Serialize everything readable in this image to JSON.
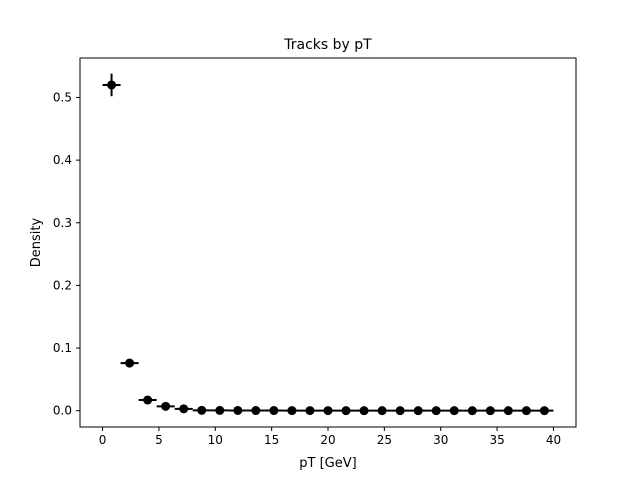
{
  "chart_data": {
    "type": "scatter",
    "title": "Tracks by pT",
    "xlabel": "pT [GeV]",
    "ylabel": "Density",
    "xlim": [
      -2,
      42
    ],
    "ylim": [
      -0.026,
      0.563
    ],
    "xticks": [
      0,
      5,
      10,
      15,
      20,
      25,
      30,
      35,
      40
    ],
    "xtick_labels": [
      "0",
      "5",
      "10",
      "15",
      "20",
      "25",
      "30",
      "35",
      "40"
    ],
    "yticks": [
      0.0,
      0.1,
      0.2,
      0.3,
      0.4,
      0.5
    ],
    "ytick_labels": [
      "0.0",
      "0.1",
      "0.2",
      "0.3",
      "0.4",
      "0.5"
    ],
    "grid": false,
    "legend": false,
    "marker_color": "#000000",
    "series": [
      {
        "x": [
          0.8,
          2.4,
          4.0,
          5.6,
          7.2,
          8.8,
          10.4,
          12.0,
          13.6,
          15.2,
          16.8,
          18.4,
          20.0,
          21.6,
          23.2,
          24.8,
          26.4,
          28.0,
          29.6,
          31.2,
          32.8,
          34.4,
          36.0,
          37.6,
          39.2
        ],
        "y": [
          0.52,
          0.076,
          0.017,
          0.007,
          0.003,
          0.0006,
          0.0005,
          0.0004,
          0.0003,
          0.0003,
          0.0002,
          0.0002,
          0.0002,
          0.0001,
          0.0001,
          0.0001,
          0.0001,
          0.0001,
          0.0001,
          0.0001,
          0.0001,
          0.0001,
          0.0001,
          0.0001,
          0.0001
        ],
        "xerr": [
          0.8,
          0.8,
          0.8,
          0.8,
          0.8,
          0.8,
          0.8,
          0.8,
          0.8,
          0.8,
          0.8,
          0.8,
          0.8,
          0.8,
          0.8,
          0.8,
          0.8,
          0.8,
          0.8,
          0.8,
          0.8,
          0.8,
          0.8,
          0.8,
          0.8
        ],
        "yerr": [
          0.018,
          0.007,
          0.003,
          0.002,
          0.001,
          0.0005,
          0.0004,
          0.0003,
          0.0003,
          0.0003,
          0.0002,
          0.0002,
          0.0002,
          0.0001,
          0.0001,
          0.0001,
          0.0001,
          0.0001,
          0.0001,
          0.0001,
          0.0001,
          0.0001,
          0.0001,
          0.0001,
          0.0001
        ]
      }
    ]
  }
}
